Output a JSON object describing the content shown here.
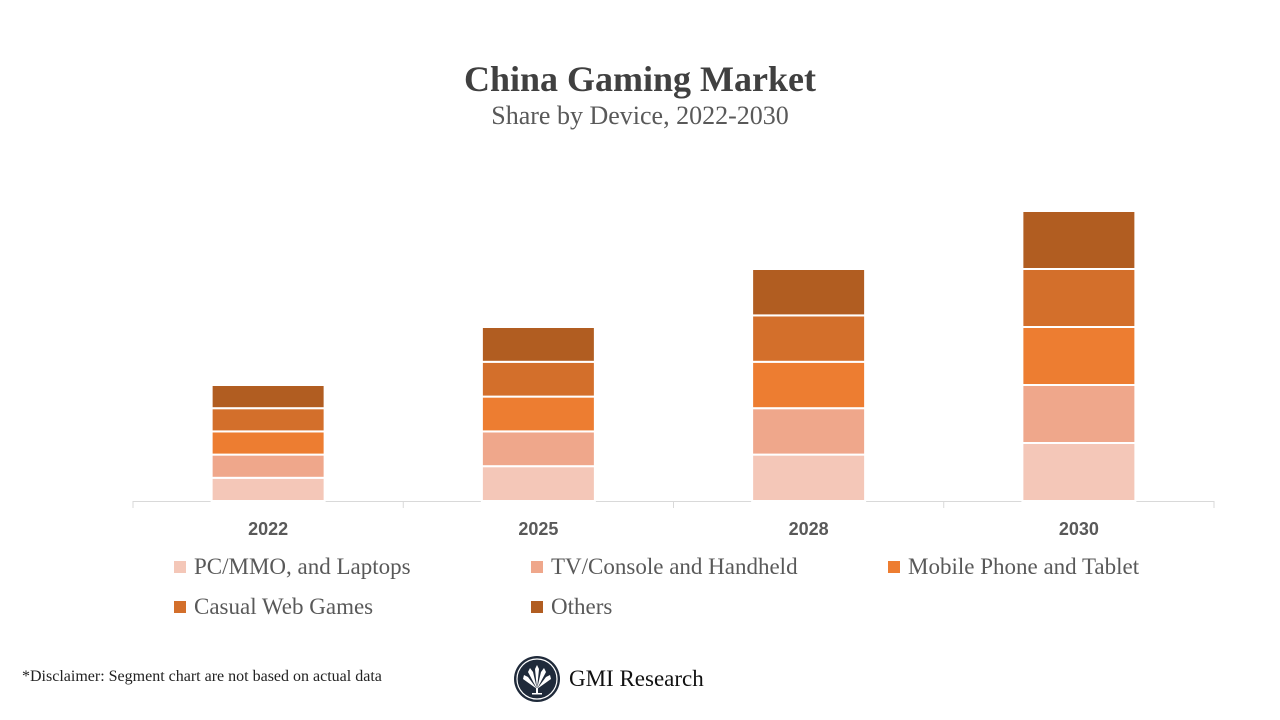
{
  "chart_data": {
    "type": "bar",
    "stacked": true,
    "title": "China Gaming Market",
    "subtitle": "Share by Device, 2022-2030",
    "xlabel": "",
    "ylabel": "",
    "ylim": [
      0,
      5
    ],
    "y_axis_visible": false,
    "grid": false,
    "legend_position": "bottom",
    "categories": [
      "2022",
      "2025",
      "2028",
      "2030"
    ],
    "series": [
      {
        "name": "PC/MMO, and Laptops",
        "color": "#F4C7B8",
        "values": [
          0.4,
          0.6,
          0.8,
          1.0
        ]
      },
      {
        "name": "TV/Console and Handheld",
        "color": "#EFA78B",
        "values": [
          0.4,
          0.6,
          0.8,
          1.0
        ]
      },
      {
        "name": "Mobile Phone and Tablet",
        "color": "#ED7D31",
        "values": [
          0.4,
          0.6,
          0.8,
          1.0
        ]
      },
      {
        "name": "Casual Web Games",
        "color": "#D36F2B",
        "values": [
          0.4,
          0.6,
          0.8,
          1.0
        ]
      },
      {
        "name": "Others",
        "color": "#B15D21",
        "values": [
          0.4,
          0.6,
          0.8,
          1.0
        ]
      }
    ]
  },
  "footer": {
    "disclaimer": "*Disclaimer:  Segment chart are not based on actual data",
    "brand": "GMI Research"
  }
}
